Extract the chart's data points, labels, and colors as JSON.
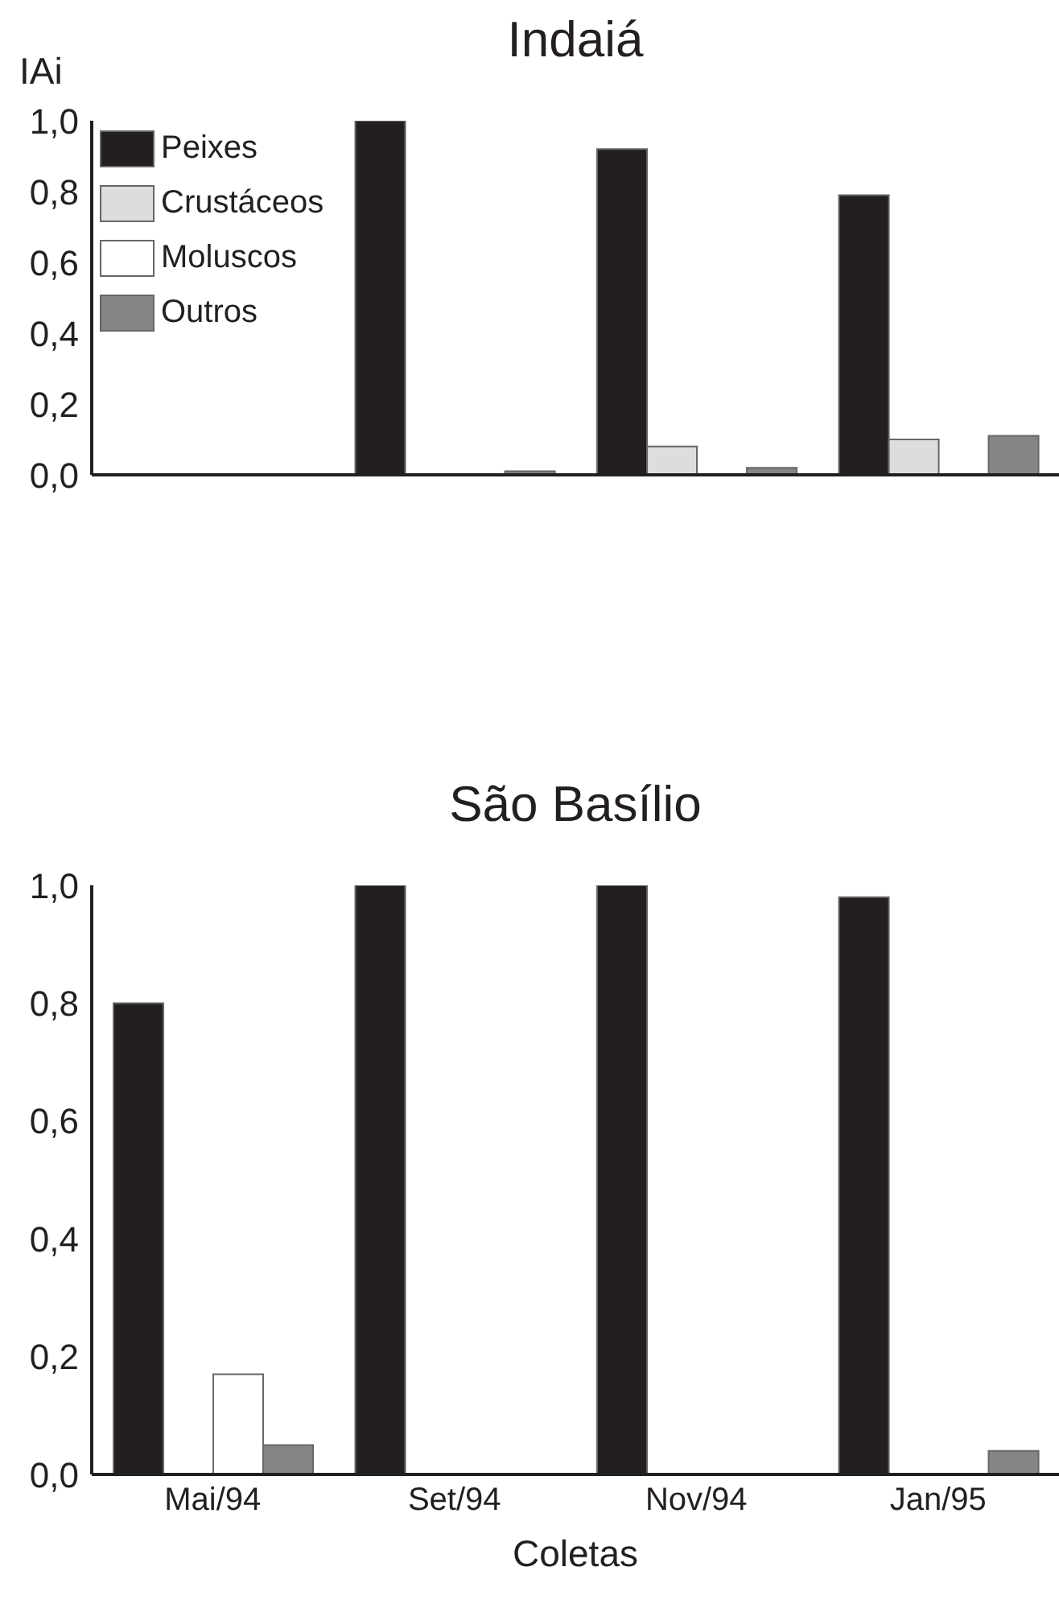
{
  "chart_data": [
    {
      "type": "bar",
      "title": "Indaiá",
      "ylabel": "IAi",
      "categories": [
        null,
        null,
        null,
        null
      ],
      "series": [
        {
          "name": "Peixes",
          "color": "#231f20",
          "values": [
            0,
            1.0,
            0.92,
            0.79
          ]
        },
        {
          "name": "Crustáceos",
          "color": "#dcdddf",
          "values": [
            0,
            0,
            0.08,
            0.1
          ]
        },
        {
          "name": "Moluscos",
          "color": "#ffffff",
          "values": [
            0,
            0,
            0,
            0
          ]
        },
        {
          "name": "Outros",
          "color": "#858585",
          "values": [
            0,
            0.01,
            0.02,
            0.11
          ]
        }
      ],
      "ylim": [
        0,
        1.0
      ],
      "yticks": [
        {
          "value": 0,
          "label": "0,0"
        },
        {
          "value": 0.2,
          "label": "0,2"
        },
        {
          "value": 0.4,
          "label": "0,4"
        },
        {
          "value": 0.6,
          "label": "0,6"
        },
        {
          "value": 0.8,
          "label": "0,8"
        },
        {
          "value": 1.0,
          "label": "1,0"
        }
      ],
      "tick_labels": "y",
      "legend": "top left",
      "grid": false
    },
    {
      "type": "bar",
      "title": "São Basílio",
      "xlabel": "Coletas",
      "categories": [
        "Mai/94",
        "Set/94",
        "Nov/94",
        "Jan/95"
      ],
      "series": [
        {
          "color": "#231f20",
          "values": [
            0.8,
            1.0,
            1.0,
            0.98
          ]
        },
        {
          "color": "#dcdddf",
          "values": [
            0,
            0,
            0,
            0
          ]
        },
        {
          "color": "#ffffff",
          "values": [
            0.17,
            0,
            0,
            0
          ]
        },
        {
          "color": "#858585",
          "values": [
            0.05,
            0,
            0,
            0.04
          ]
        }
      ],
      "ylim": [
        0,
        1.0
      ],
      "yticks": [
        {
          "value": 0,
          "label": "0,0"
        },
        {
          "value": 0.2,
          "label": "0,2"
        },
        {
          "value": 0.4,
          "label": "0,4"
        },
        {
          "value": 0.6,
          "label": "0,6"
        },
        {
          "value": 0.8,
          "label": "0,8"
        },
        {
          "value": 1.0,
          "label": "1,0"
        }
      ],
      "grid": false
    }
  ]
}
